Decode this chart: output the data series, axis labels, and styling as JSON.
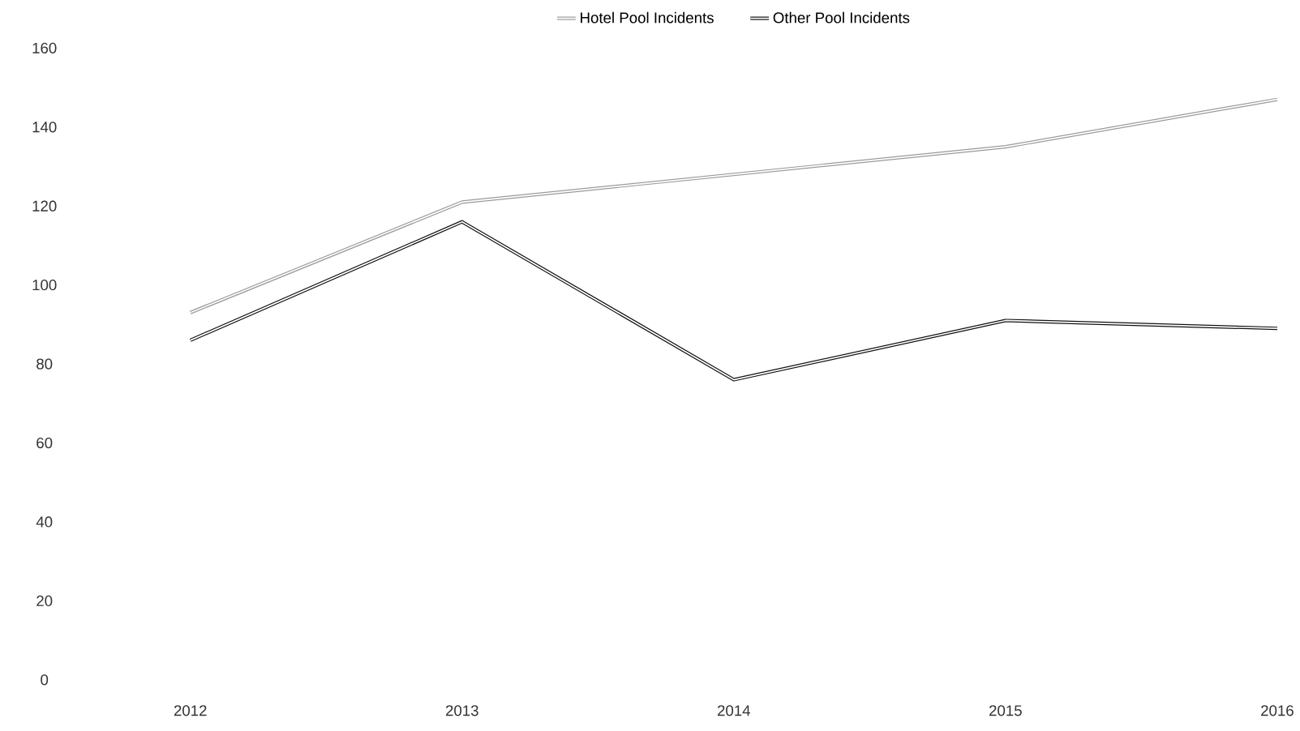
{
  "chart_data": {
    "type": "line",
    "categories": [
      "2012",
      "2013",
      "2014",
      "2015",
      "2016"
    ],
    "series": [
      {
        "name": "Hotel Pool Incidents",
        "color": "#9a9a9a",
        "values": [
          93,
          121,
          128,
          135,
          147
        ]
      },
      {
        "name": "Other Pool Incidents",
        "color": "#111111",
        "values": [
          86,
          116,
          76,
          91,
          89
        ]
      }
    ],
    "ylim": [
      0,
      160
    ],
    "yticks": [
      0,
      20,
      40,
      60,
      80,
      100,
      120,
      140,
      160
    ],
    "legend": "top",
    "grid": false,
    "marker": "none",
    "line_style": "solid"
  }
}
